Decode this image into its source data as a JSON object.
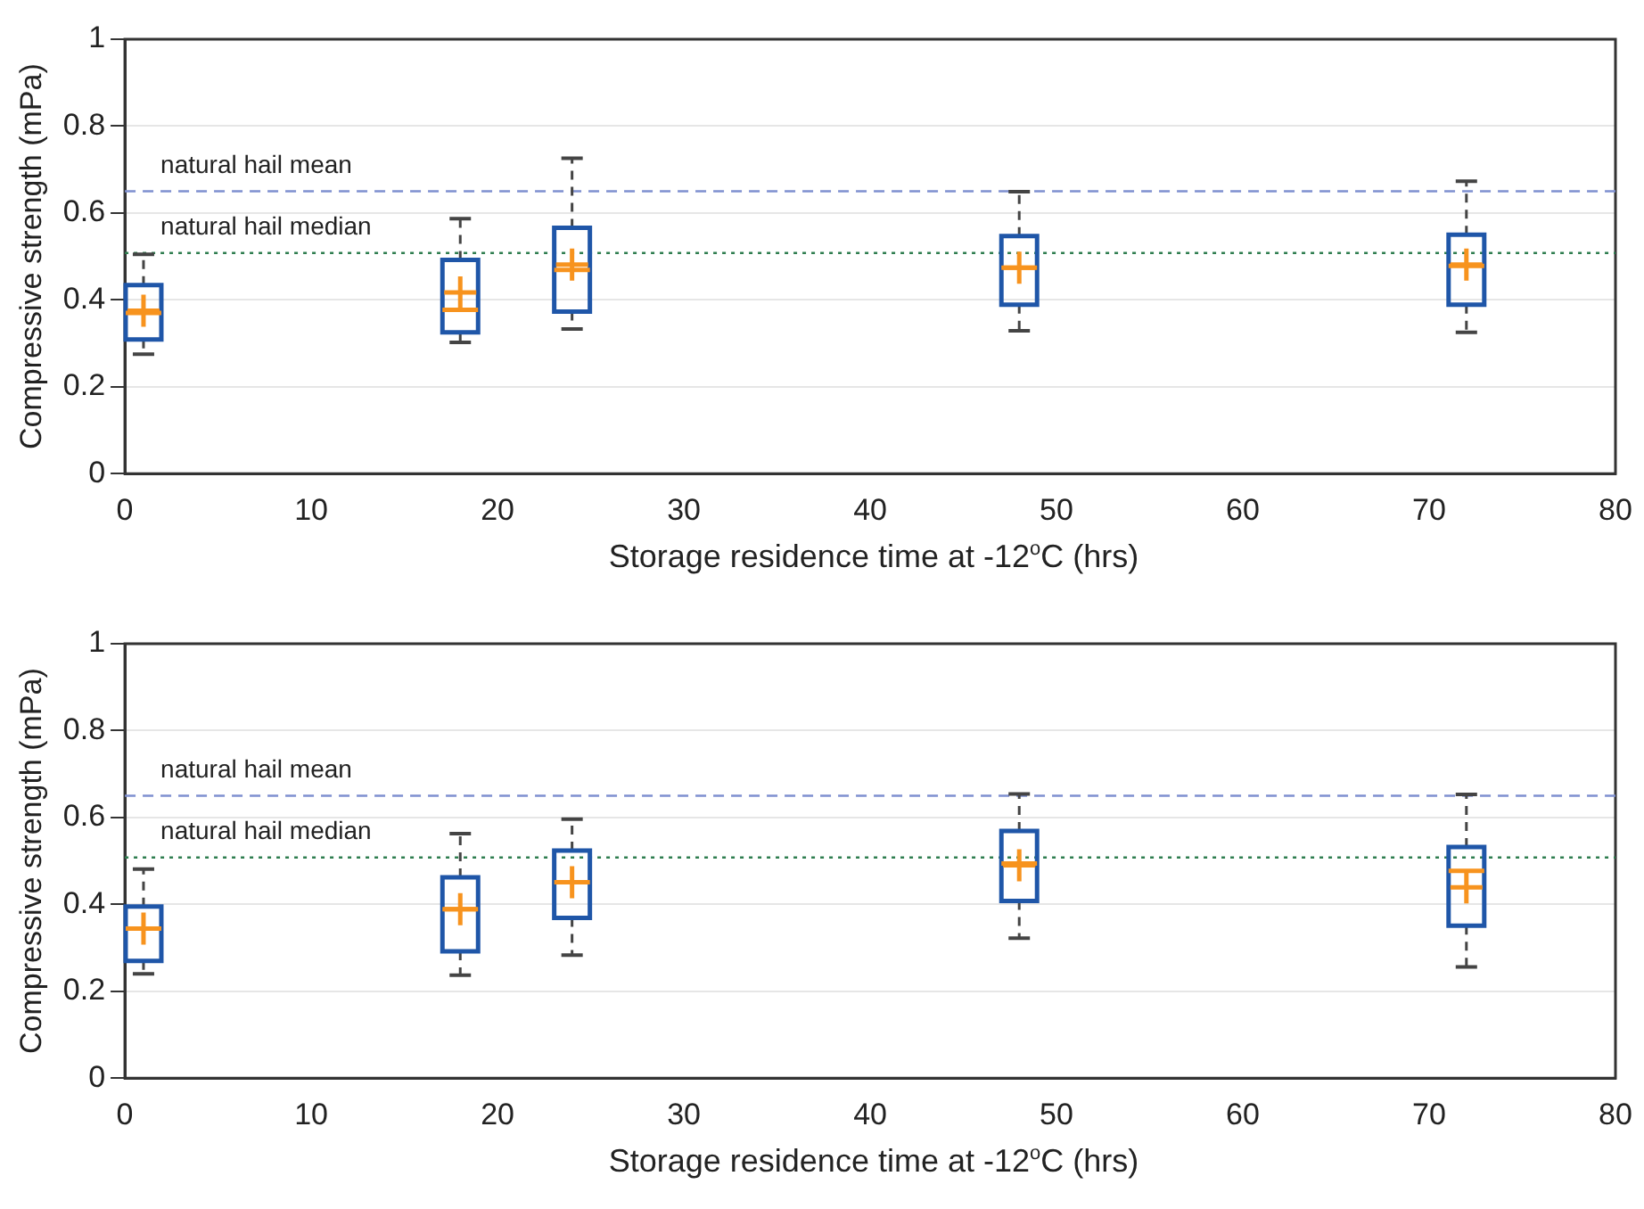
{
  "chart_data": [
    {
      "type": "box",
      "xlabel": "Storage residence time at -12$^{o}$C (hrs)",
      "ylabel": "Compressive strength (mPa)",
      "xlim": [
        0,
        80
      ],
      "xticks": [
        0,
        10,
        20,
        30,
        40,
        50,
        60,
        70,
        80
      ],
      "ylim": [
        0,
        1
      ],
      "yticks": [
        0,
        0.2,
        0.4,
        0.6,
        0.8,
        1
      ],
      "grid": "y",
      "marker": "cross",
      "series": [
        {
          "color": "#1f56a8",
          "x": [
            1,
            18,
            24,
            48,
            72
          ],
          "boxes": [
            {
              "low": 0.275,
              "q1": 0.309,
              "median": 0.37,
              "q3": 0.434,
              "high": 0.505,
              "mean": 0.375
            },
            {
              "low": 0.302,
              "q1": 0.325,
              "median": 0.377,
              "q3": 0.492,
              "high": 0.587,
              "mean": 0.417
            },
            {
              "low": 0.333,
              "q1": 0.373,
              "median": 0.469,
              "q3": 0.566,
              "high": 0.726,
              "mean": 0.481
            },
            {
              "low": 0.329,
              "q1": 0.389,
              "median": 0.474,
              "q3": 0.547,
              "high": 0.649,
              "mean": 0.474
            },
            {
              "low": 0.325,
              "q1": 0.389,
              "median": 0.478,
              "q3": 0.55,
              "high": 0.673,
              "mean": 0.481
            }
          ]
        }
      ],
      "ref_lines": [
        {
          "axis": "y",
          "value": 0.65,
          "label": "natural hail mean",
          "color": "#7f90d0",
          "line_style": "dashed"
        },
        {
          "axis": "y",
          "value": 0.508,
          "label": "natural hail median",
          "color": "#2e7d4f",
          "line_style": "dotted"
        }
      ]
    },
    {
      "type": "box",
      "xlabel": "Storage residence time at -12$^{o}$C (hrs)",
      "ylabel": "Compressive strength (mPa)",
      "xlim": [
        0,
        80
      ],
      "xticks": [
        0,
        10,
        20,
        30,
        40,
        50,
        60,
        70,
        80
      ],
      "ylim": [
        0,
        1
      ],
      "yticks": [
        0,
        0.2,
        0.4,
        0.6,
        0.8,
        1
      ],
      "grid": "y",
      "marker": "cross",
      "series": [
        {
          "color": "#1f56a8",
          "x": [
            1,
            18,
            24,
            48,
            72
          ],
          "boxes": [
            {
              "low": 0.24,
              "q1": 0.27,
              "median": 0.344,
              "q3": 0.395,
              "high": 0.481,
              "mean": 0.344
            },
            {
              "low": 0.237,
              "q1": 0.292,
              "median": 0.389,
              "q3": 0.462,
              "high": 0.563,
              "mean": 0.389
            },
            {
              "low": 0.283,
              "q1": 0.369,
              "median": 0.451,
              "q3": 0.524,
              "high": 0.596,
              "mean": 0.451
            },
            {
              "low": 0.322,
              "q1": 0.408,
              "median": 0.494,
              "q3": 0.569,
              "high": 0.654,
              "mean": 0.49
            },
            {
              "low": 0.256,
              "q1": 0.351,
              "median": 0.477,
              "q3": 0.532,
              "high": 0.653,
              "mean": 0.439
            }
          ]
        }
      ],
      "ref_lines": [
        {
          "axis": "y",
          "value": 0.65,
          "label": "natural hail mean",
          "color": "#7f90d0",
          "line_style": "dashed"
        },
        {
          "axis": "y",
          "value": 0.508,
          "label": "natural hail median",
          "color": "#2e7d4f",
          "line_style": "dotted"
        }
      ]
    }
  ]
}
